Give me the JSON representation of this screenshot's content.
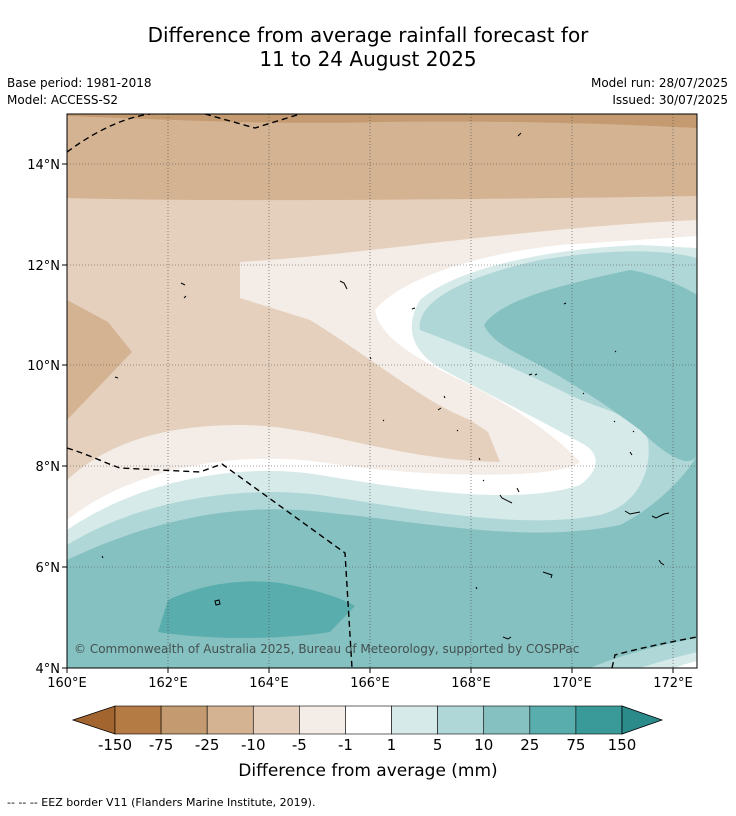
{
  "header": {
    "title_line1": "Difference from average rainfall forecast for",
    "title_line2": "11 to 24 August 2025",
    "base_period": "Base period: 1981-2018",
    "model": "Model: ACCESS-S2",
    "model_run": "Model run: 28/07/2025",
    "issued": "Issued: 30/07/2025"
  },
  "map": {
    "lat_labels": [
      "14°N",
      "12°N",
      "10°N",
      "8°N",
      "6°N",
      "4°N"
    ],
    "lon_labels": [
      "160°E",
      "162°E",
      "164°E",
      "166°E",
      "168°E",
      "170°E",
      "172°E"
    ],
    "copyright": "© Commonwealth of Australia 2025, Bureau of Meteorology, supported by COSPPac"
  },
  "colorbar": {
    "title": "Difference from average (mm)",
    "ticks": [
      "-150",
      "-75",
      "-25",
      "-10",
      "-5",
      "-1",
      "1",
      "5",
      "10",
      "25",
      "75",
      "150"
    ],
    "colors": [
      "#a26530",
      "#b57b45",
      "#c49a70",
      "#d4b393",
      "#e5d0bd",
      "#f4ece6",
      "#ffffff",
      "#d6eae9",
      "#b0d7d7",
      "#86c1c1",
      "#5aadad",
      "#3a9a9a",
      "#2b8a8a"
    ]
  },
  "footer": {
    "legend": "--  --  -- EEZ border V11 (Flanders Marine Institute, 2019)."
  }
}
